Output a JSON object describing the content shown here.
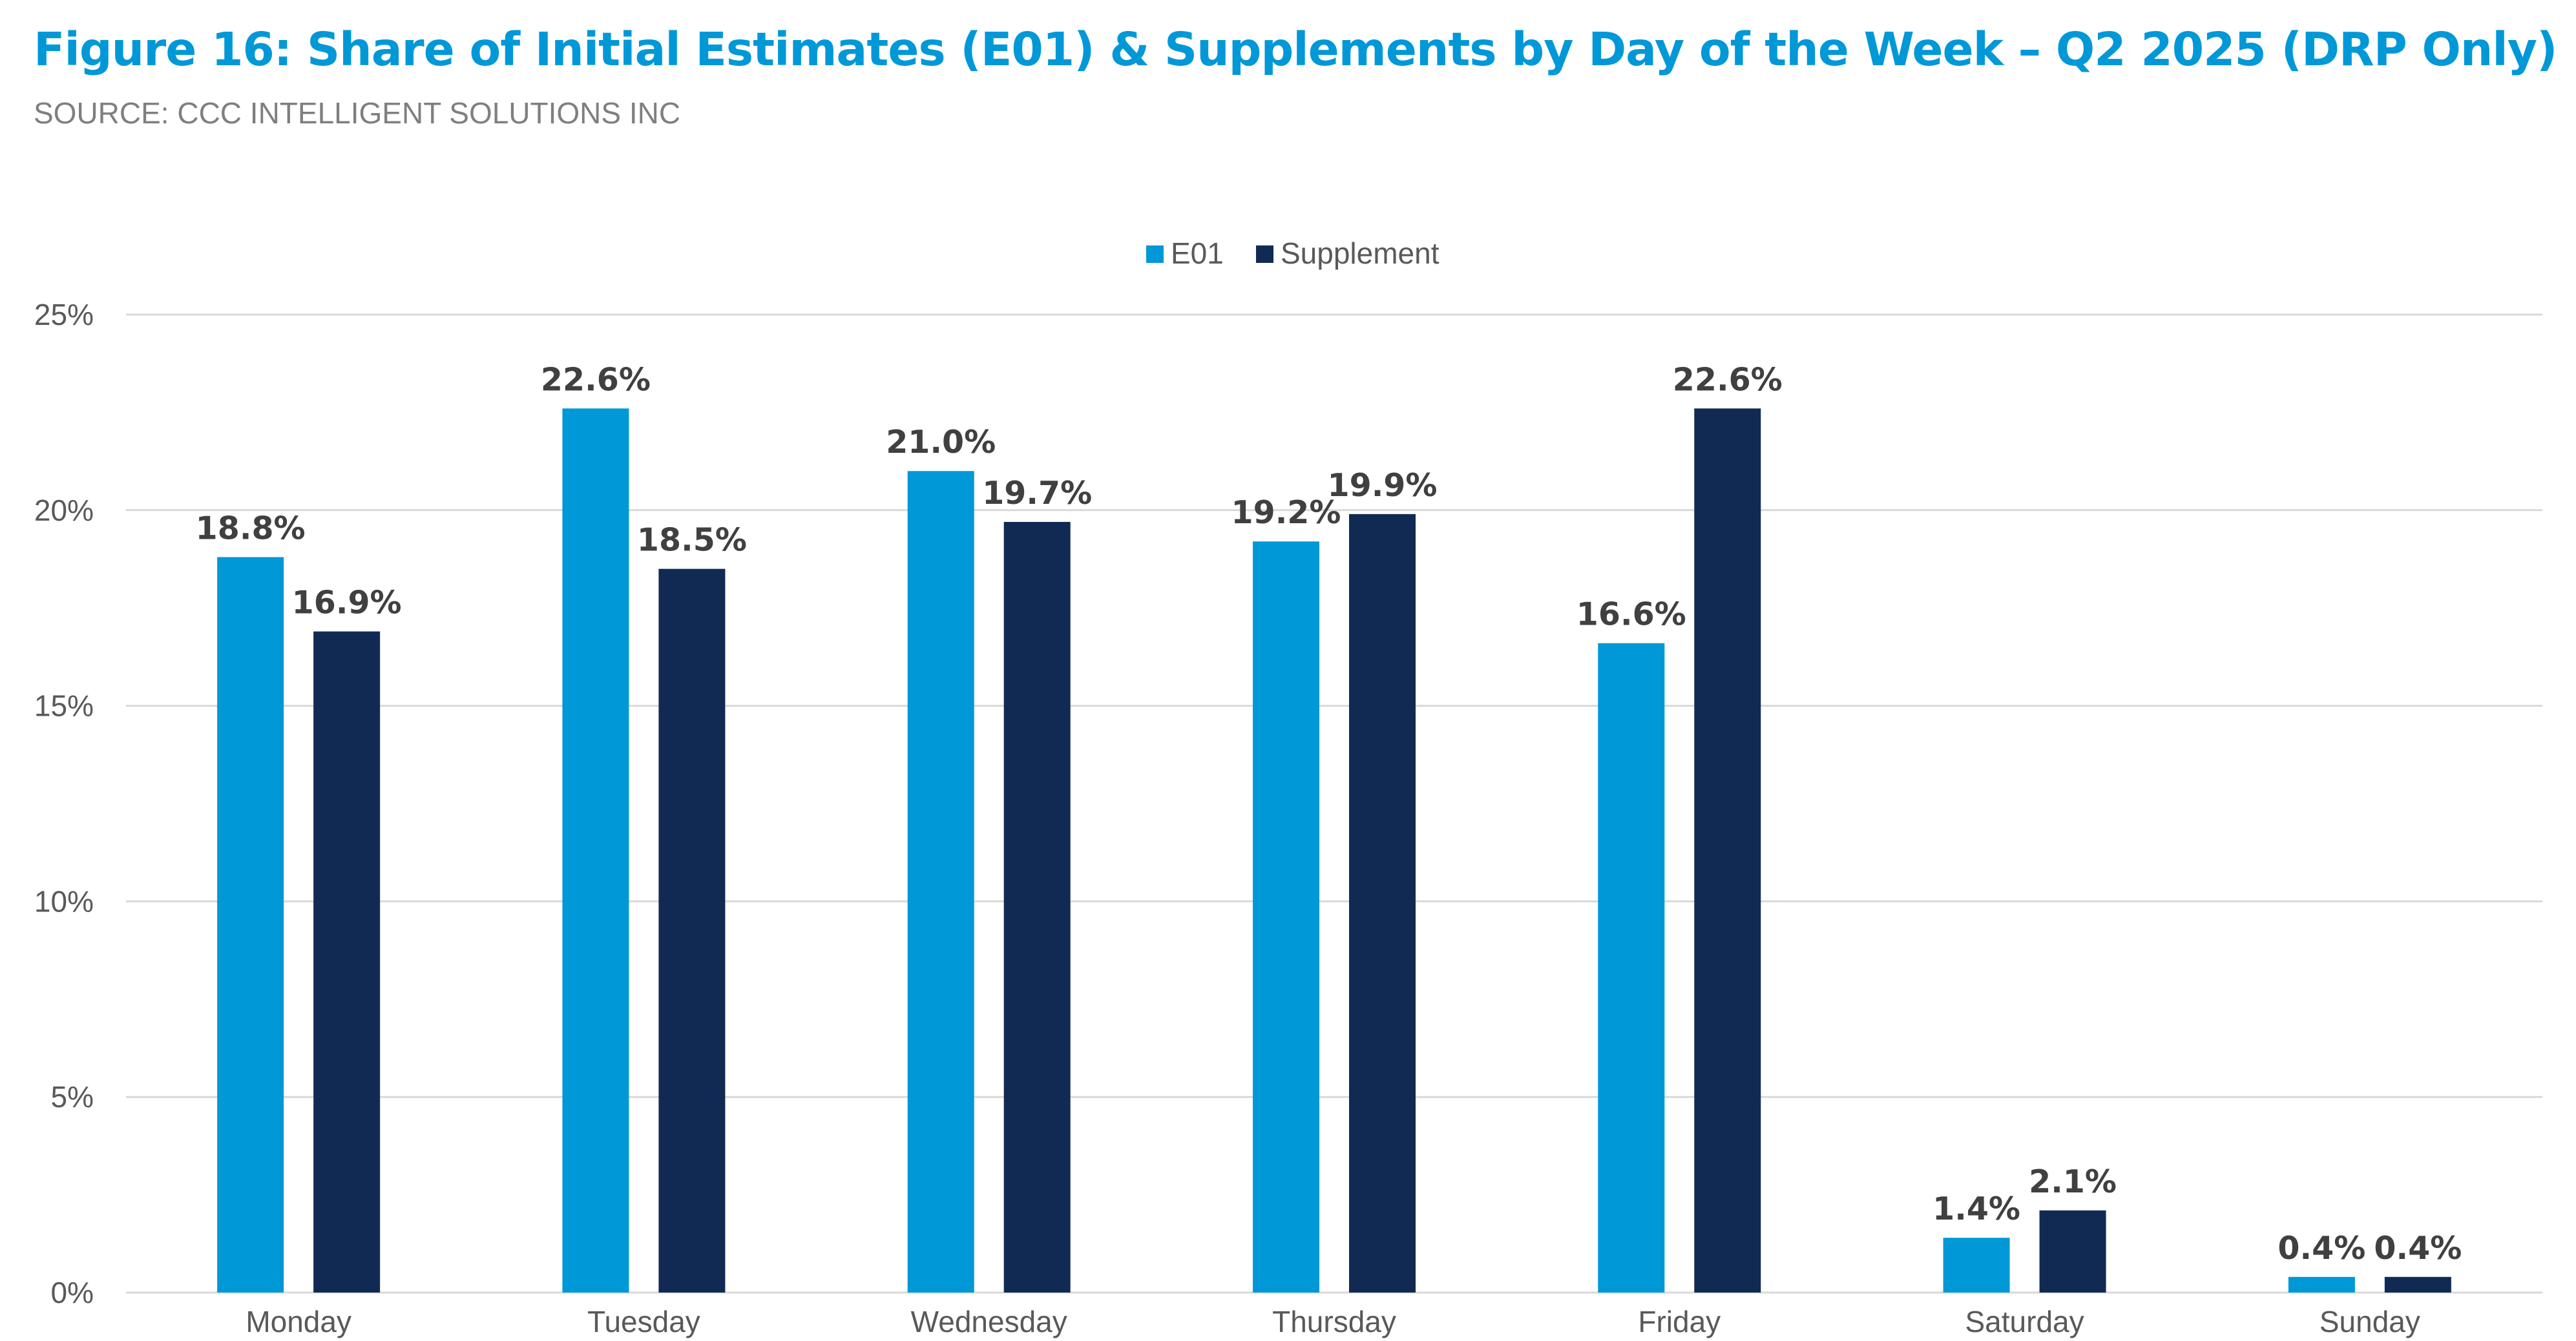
{
  "title": "Figure 16: Share of Initial Estimates (E01) & Supplements by Day of the Week – Q2 2025 (DRP Only)",
  "subtitle": "SOURCE: CCC INTELLIGENT SOLUTIONS INC",
  "colors": {
    "title": "#0098d7",
    "e01": "#0098d7",
    "supplement": "#112a54",
    "grid": "#d9d9d9",
    "axis_text": "#595959",
    "data_label": "#404040"
  },
  "chart_data": {
    "type": "bar",
    "categories": [
      "Monday",
      "Tuesday",
      "Wednesday",
      "Thursday",
      "Friday",
      "Saturday",
      "Sunday"
    ],
    "series": [
      {
        "name": "E01",
        "values": [
          18.8,
          22.6,
          21.0,
          19.2,
          16.6,
          1.4,
          0.4
        ],
        "labels": [
          "18.8%",
          "22.6%",
          "21.0%",
          "19.2%",
          "16.6%",
          "1.4%",
          "0.4%"
        ]
      },
      {
        "name": "Supplement",
        "values": [
          16.9,
          18.5,
          19.7,
          19.9,
          22.6,
          2.1,
          0.4
        ],
        "labels": [
          "16.9%",
          "18.5%",
          "19.7%",
          "19.9%",
          "22.6%",
          "2.1%",
          "0.4%"
        ]
      }
    ],
    "title": "Figure 16: Share of Initial Estimates (E01) & Supplements by Day of the Week – Q2 2025 (DRP Only)",
    "xlabel": "",
    "ylabel": "",
    "ylim": [
      0,
      25
    ],
    "yticks": [
      0,
      5,
      10,
      15,
      20,
      25
    ],
    "ytick_labels": [
      "0%",
      "5%",
      "10%",
      "15%",
      "20%",
      "25%"
    ],
    "grid": true,
    "legend_position": "top-center"
  }
}
